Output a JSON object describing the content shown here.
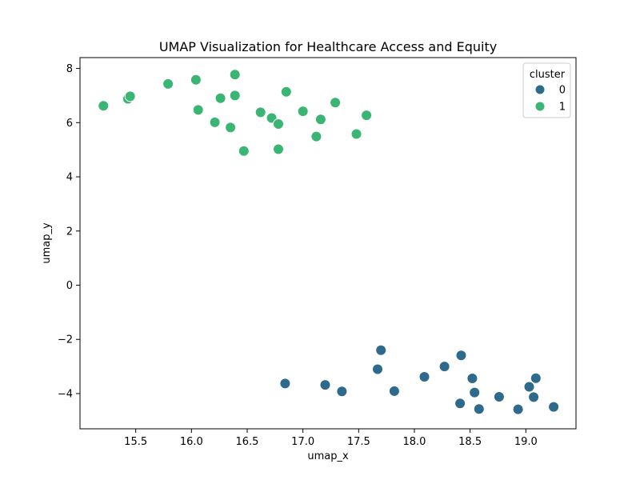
{
  "chart_data": {
    "type": "scatter",
    "title": "UMAP Visualization for Healthcare Access and Equity",
    "xlabel": "umap_x",
    "ylabel": "umap_y",
    "xlim": [
      15.0,
      19.45
    ],
    "ylim": [
      -5.3,
      8.4
    ],
    "xticks": [
      15.5,
      16.0,
      16.5,
      17.0,
      17.5,
      18.0,
      18.5,
      19.0
    ],
    "yticks": [
      -4,
      -2,
      0,
      2,
      4,
      6,
      8
    ],
    "grid": false,
    "legend": {
      "title": "cluster",
      "placement": "top-right"
    },
    "series": [
      {
        "name": "0",
        "color": "#2e6a8c",
        "points": [
          [
            16.84,
            -3.63
          ],
          [
            17.2,
            -3.68
          ],
          [
            17.35,
            -3.92
          ],
          [
            17.67,
            -3.1
          ],
          [
            17.7,
            -2.4
          ],
          [
            17.82,
            -3.91
          ],
          [
            18.09,
            -3.38
          ],
          [
            18.27,
            -3.0
          ],
          [
            18.41,
            -4.36
          ],
          [
            18.42,
            -2.59
          ],
          [
            18.52,
            -3.44
          ],
          [
            18.54,
            -3.96
          ],
          [
            18.58,
            -4.57
          ],
          [
            18.76,
            -4.12
          ],
          [
            18.93,
            -4.58
          ],
          [
            19.03,
            -3.75
          ],
          [
            19.07,
            -4.13
          ],
          [
            19.09,
            -3.43
          ],
          [
            19.25,
            -4.49
          ]
        ]
      },
      {
        "name": "1",
        "color": "#3bb574",
        "points": [
          [
            15.21,
            6.62
          ],
          [
            15.43,
            6.88
          ],
          [
            15.45,
            6.97
          ],
          [
            15.79,
            7.43
          ],
          [
            16.04,
            7.58
          ],
          [
            16.06,
            6.47
          ],
          [
            16.21,
            6.01
          ],
          [
            16.26,
            6.9
          ],
          [
            16.35,
            5.82
          ],
          [
            16.39,
            7.77
          ],
          [
            16.39,
            7.0
          ],
          [
            16.47,
            4.95
          ],
          [
            16.62,
            6.38
          ],
          [
            16.72,
            6.17
          ],
          [
            16.78,
            5.02
          ],
          [
            16.78,
            5.95
          ],
          [
            16.85,
            7.14
          ],
          [
            17.0,
            6.42
          ],
          [
            17.12,
            5.49
          ],
          [
            17.16,
            6.12
          ],
          [
            17.29,
            6.74
          ],
          [
            17.48,
            5.58
          ],
          [
            17.57,
            6.27
          ]
        ]
      }
    ]
  }
}
